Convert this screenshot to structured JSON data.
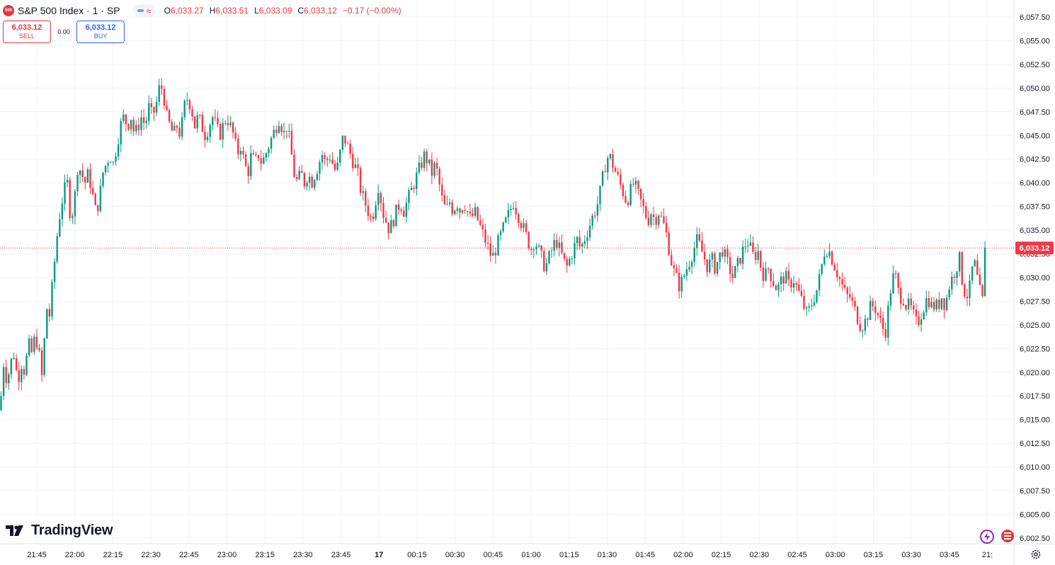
{
  "header": {
    "symbol_badge": "500",
    "symbol_title": "S&P 500 Index · 1 · SP",
    "ohlc": {
      "o_label": "O",
      "o_value": "6,033.27",
      "h_label": "H",
      "h_value": "6,033.51",
      "l_label": "L",
      "l_value": "6,033.09",
      "c_label": "C",
      "c_value": "6,033.12",
      "change": "−0.17 (−0.00%)"
    }
  },
  "trade": {
    "sell_price": "6,033.12",
    "sell_label": "SELL",
    "spread": "0.00",
    "buy_price": "6,033.12",
    "buy_label": "BUY"
  },
  "branding": {
    "logo_text": "TradingView"
  },
  "icons": [
    "symbol-badge-icon",
    "indicator-toggle-icon",
    "settings-gear-icon",
    "lightning-icon",
    "flag-icon",
    "tv-logo-icon"
  ],
  "colors": {
    "up": "#089981",
    "down": "#f23645",
    "last_price_bg": "#f23645",
    "grid": "#f0f3fa",
    "text": "#131722"
  },
  "chart_data": {
    "type": "candlestick",
    "symbol": "S&P 500 Index",
    "interval": "1",
    "exchange": "SP",
    "ylim": [
      6001.5,
      6059.5
    ],
    "x_ticks": [
      "21:45",
      "22:00",
      "22:15",
      "22:30",
      "22:45",
      "23:00",
      "23:15",
      "23:30",
      "23:45",
      "17",
      "00:15",
      "00:30",
      "00:45",
      "01:00",
      "01:15",
      "01:30",
      "01:45",
      "02:00",
      "02:15",
      "02:30",
      "02:45",
      "03:00",
      "03:15",
      "03:30",
      "03:45",
      "21:"
    ],
    "y_ticks": [
      "6,057.50",
      "6,055.00",
      "6,052.50",
      "6,050.00",
      "6,047.50",
      "6,045.00",
      "6,042.50",
      "6,040.00",
      "6,037.50",
      "6,035.00",
      "6,032.50",
      "6,030.00",
      "6,027.50",
      "6,025.00",
      "6,022.50",
      "6,020.00",
      "6,017.50",
      "6,015.00",
      "6,012.50",
      "6,010.00",
      "6,007.50",
      "6,005.00",
      "6,002.50"
    ],
    "last_price": 6033.12,
    "last_price_label": "6,033.12",
    "grid": true,
    "close_path": [
      [
        0,
        6016
      ],
      [
        5,
        6021
      ],
      [
        10,
        6019
      ],
      [
        15,
        6021
      ],
      [
        20,
        6022
      ],
      [
        25,
        6019
      ],
      [
        30,
        6021
      ],
      [
        35,
        6020
      ],
      [
        40,
        6023
      ],
      [
        45,
        6022
      ],
      [
        50,
        6024
      ],
      [
        55,
        6022
      ],
      [
        60,
        6019
      ],
      [
        65,
        6027
      ],
      [
        70,
        6026
      ],
      [
        75,
        6030
      ],
      [
        80,
        6034
      ],
      [
        85,
        6037
      ],
      [
        90,
        6039
      ],
      [
        95,
        6040
      ],
      [
        100,
        6036
      ],
      [
        105,
        6038
      ],
      [
        110,
        6042
      ],
      [
        115,
        6041
      ],
      [
        120,
        6040
      ],
      [
        125,
        6041
      ],
      [
        130,
        6039
      ],
      [
        135,
        6037
      ],
      [
        140,
        6038
      ],
      [
        145,
        6041
      ],
      [
        150,
        6042
      ],
      [
        155,
        6043
      ],
      [
        160,
        6042
      ],
      [
        165,
        6044
      ],
      [
        170,
        6046
      ],
      [
        175,
        6047
      ],
      [
        180,
        6046
      ],
      [
        185,
        6047
      ],
      [
        190,
        6045
      ],
      [
        195,
        6046
      ],
      [
        200,
        6047
      ],
      [
        205,
        6046
      ],
      [
        210,
        6048
      ],
      [
        215,
        6047
      ],
      [
        220,
        6048
      ],
      [
        225,
        6050
      ],
      [
        230,
        6050
      ],
      [
        235,
        6047
      ],
      [
        240,
        6046
      ],
      [
        245,
        6045
      ],
      [
        250,
        6046
      ],
      [
        255,
        6045
      ],
      [
        260,
        6048
      ],
      [
        265,
        6049
      ],
      [
        270,
        6048
      ],
      [
        275,
        6046
      ],
      [
        280,
        6047
      ],
      [
        285,
        6046
      ],
      [
        290,
        6045
      ],
      [
        295,
        6046
      ],
      [
        300,
        6047
      ],
      [
        305,
        6046
      ],
      [
        310,
        6045
      ],
      [
        315,
        6046
      ],
      [
        320,
        6047
      ],
      [
        325,
        6046
      ],
      [
        330,
        6045
      ],
      [
        335,
        6043
      ],
      [
        340,
        6044
      ],
      [
        345,
        6042
      ],
      [
        350,
        6041
      ],
      [
        355,
        6043
      ],
      [
        360,
        6042
      ],
      [
        365,
        6043
      ],
      [
        370,
        6042
      ],
      [
        375,
        6043
      ],
      [
        380,
        6044
      ],
      [
        385,
        6045
      ],
      [
        390,
        6046
      ],
      [
        395,
        6047
      ],
      [
        400,
        6045
      ],
      [
        405,
        6046
      ],
      [
        410,
        6044
      ],
      [
        415,
        6041
      ],
      [
        420,
        6040
      ],
      [
        425,
        6041
      ],
      [
        430,
        6040
      ],
      [
        435,
        6041
      ],
      [
        440,
        6040
      ],
      [
        445,
        6041
      ],
      [
        450,
        6042
      ],
      [
        455,
        6043
      ],
      [
        460,
        6042
      ],
      [
        465,
        6043
      ],
      [
        470,
        6042
      ],
      [
        475,
        6041
      ],
      [
        480,
        6043
      ],
      [
        485,
        6045
      ],
      [
        490,
        6044
      ],
      [
        495,
        6043
      ],
      [
        500,
        6042
      ],
      [
        505,
        6041
      ],
      [
        510,
        6039
      ],
      [
        515,
        6038
      ],
      [
        520,
        6037
      ],
      [
        525,
        6036
      ],
      [
        530,
        6038
      ],
      [
        535,
        6040
      ],
      [
        540,
        6037
      ],
      [
        545,
        6036
      ],
      [
        550,
        6035
      ],
      [
        555,
        6036
      ],
      [
        560,
        6037
      ],
      [
        565,
        6038
      ],
      [
        570,
        6037
      ],
      [
        575,
        6038
      ],
      [
        580,
        6039
      ],
      [
        585,
        6040
      ],
      [
        590,
        6041
      ],
      [
        595,
        6042
      ],
      [
        600,
        6043
      ],
      [
        605,
        6042
      ],
      [
        610,
        6041
      ],
      [
        615,
        6042
      ],
      [
        620,
        6040
      ],
      [
        625,
        6038
      ],
      [
        630,
        6037
      ],
      [
        635,
        6038
      ],
      [
        640,
        6037
      ],
      [
        645,
        6038
      ],
      [
        650,
        6037
      ],
      [
        655,
        6038
      ],
      [
        660,
        6037
      ],
      [
        665,
        6036
      ],
      [
        670,
        6037
      ],
      [
        675,
        6036
      ],
      [
        680,
        6035
      ],
      [
        685,
        6034
      ],
      [
        690,
        6033
      ],
      [
        695,
        6032
      ],
      [
        700,
        6033
      ],
      [
        705,
        6034
      ],
      [
        710,
        6035
      ],
      [
        715,
        6036
      ],
      [
        720,
        6037
      ],
      [
        725,
        6038
      ],
      [
        730,
        6037
      ],
      [
        735,
        6036
      ],
      [
        740,
        6035
      ],
      [
        745,
        6034
      ],
      [
        750,
        6033
      ],
      [
        755,
        6034
      ],
      [
        760,
        6033
      ],
      [
        765,
        6032
      ],
      [
        770,
        6031
      ],
      [
        775,
        6032
      ],
      [
        780,
        6033
      ],
      [
        785,
        6034
      ],
      [
        790,
        6033
      ],
      [
        795,
        6032
      ],
      [
        800,
        6031
      ],
      [
        805,
        6032
      ],
      [
        810,
        6033
      ],
      [
        815,
        6034
      ],
      [
        820,
        6033
      ],
      [
        825,
        6034
      ],
      [
        830,
        6035
      ],
      [
        835,
        6036
      ],
      [
        840,
        6037
      ],
      [
        845,
        6038
      ],
      [
        850,
        6040
      ],
      [
        855,
        6042
      ],
      [
        860,
        6043
      ],
      [
        865,
        6042
      ],
      [
        870,
        6041
      ],
      [
        875,
        6040
      ],
      [
        880,
        6039
      ],
      [
        885,
        6038
      ],
      [
        890,
        6039
      ],
      [
        895,
        6040
      ],
      [
        900,
        6039
      ],
      [
        905,
        6038
      ],
      [
        910,
        6037
      ],
      [
        915,
        6036
      ],
      [
        920,
        6037
      ],
      [
        925,
        6036
      ],
      [
        930,
        6037
      ],
      [
        935,
        6036
      ],
      [
        940,
        6035
      ],
      [
        945,
        6033
      ],
      [
        950,
        6031
      ],
      [
        955,
        6030
      ],
      [
        960,
        6029
      ],
      [
        965,
        6030
      ],
      [
        970,
        6031
      ],
      [
        975,
        6032
      ],
      [
        980,
        6033
      ],
      [
        985,
        6034
      ],
      [
        990,
        6033
      ],
      [
        995,
        6032
      ],
      [
        1000,
        6031
      ],
      [
        1005,
        6032
      ],
      [
        1010,
        6031
      ],
      [
        1015,
        6032
      ],
      [
        1020,
        6033
      ],
      [
        1025,
        6032
      ],
      [
        1030,
        6031
      ],
      [
        1035,
        6030
      ],
      [
        1040,
        6031
      ],
      [
        1045,
        6032
      ],
      [
        1050,
        6033
      ],
      [
        1055,
        6034
      ],
      [
        1060,
        6033
      ],
      [
        1065,
        6032
      ],
      [
        1070,
        6033
      ],
      [
        1075,
        6031
      ],
      [
        1080,
        6030
      ],
      [
        1085,
        6031
      ],
      [
        1090,
        6030
      ],
      [
        1095,
        6029
      ],
      [
        1100,
        6029
      ],
      [
        1105,
        6030
      ],
      [
        1110,
        6030
      ],
      [
        1115,
        6029
      ],
      [
        1120,
        6030
      ],
      [
        1125,
        6029
      ],
      [
        1130,
        6028
      ],
      [
        1135,
        6027
      ],
      [
        1140,
        6026
      ],
      [
        1145,
        6027
      ],
      [
        1150,
        6028
      ],
      [
        1155,
        6029
      ],
      [
        1160,
        6031
      ],
      [
        1165,
        6033
      ],
      [
        1170,
        6033
      ],
      [
        1175,
        6032
      ],
      [
        1180,
        6031
      ],
      [
        1185,
        6030
      ],
      [
        1190,
        6029
      ],
      [
        1195,
        6028
      ],
      [
        1200,
        6028
      ],
      [
        1205,
        6027
      ],
      [
        1210,
        6026
      ],
      [
        1215,
        6025
      ],
      [
        1220,
        6025
      ],
      [
        1225,
        6026
      ],
      [
        1230,
        6027
      ],
      [
        1235,
        6027
      ],
      [
        1240,
        6026
      ],
      [
        1245,
        6025
      ],
      [
        1250,
        6024
      ],
      [
        1255,
        6027
      ],
      [
        1260,
        6030
      ],
      [
        1265,
        6030
      ],
      [
        1270,
        6028
      ],
      [
        1275,
        6028
      ],
      [
        1280,
        6027
      ],
      [
        1285,
        6027
      ],
      [
        1290,
        6026
      ],
      [
        1295,
        6025
      ],
      [
        1300,
        6026
      ],
      [
        1305,
        6027
      ],
      [
        1310,
        6028
      ],
      [
        1315,
        6027
      ],
      [
        1320,
        6027
      ],
      [
        1325,
        6027
      ],
      [
        1330,
        6028
      ],
      [
        1335,
        6027
      ],
      [
        1340,
        6029
      ],
      [
        1345,
        6030
      ],
      [
        1350,
        6031
      ],
      [
        1355,
        6032
      ],
      [
        1360,
        6029
      ],
      [
        1365,
        6028
      ],
      [
        1370,
        6029
      ],
      [
        1375,
        6032
      ],
      [
        1380,
        6030
      ],
      [
        1385,
        6028
      ],
      [
        1390,
        6027
      ],
      [
        1393,
        6033.12
      ]
    ]
  }
}
